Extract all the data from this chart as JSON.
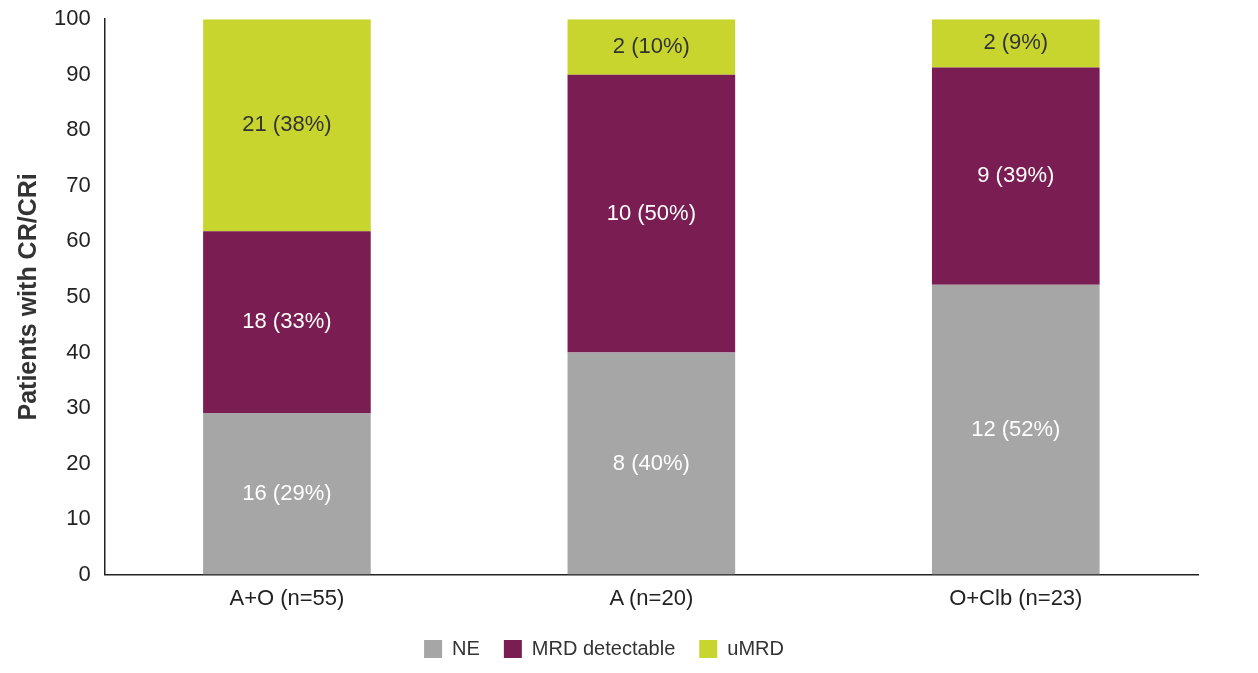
{
  "chart_data": {
    "type": "bar",
    "stacked": true,
    "ylabel": "Patients with CR/CRi",
    "categories": [
      "A+O (n=55)",
      "A (n=20)",
      "O+Clb (n=23)"
    ],
    "series": [
      {
        "name": "NE",
        "color": "#a6a6a6",
        "values": [
          29.1,
          40,
          52.2
        ],
        "value_labels": [
          "16 (29%)",
          "8 (40%)",
          "12 (52%)"
        ]
      },
      {
        "name": "MRD detectable",
        "color": "#7a1d52",
        "values": [
          32.7,
          50,
          39.1
        ],
        "value_labels": [
          "18 (33%)",
          "10 (50%)",
          "9 (39%)"
        ]
      },
      {
        "name": "uMRD",
        "color": "#c9d52f",
        "values": [
          38.2,
          10,
          8.7
        ],
        "value_labels": [
          "21 (38%)",
          "2 (10%)",
          "2 (9%)"
        ]
      }
    ],
    "ylim": [
      0,
      100
    ],
    "yticks": [
      0,
      10,
      20,
      30,
      40,
      50,
      60,
      70,
      80,
      90,
      100
    ],
    "grid": false,
    "legend": "bottom"
  }
}
